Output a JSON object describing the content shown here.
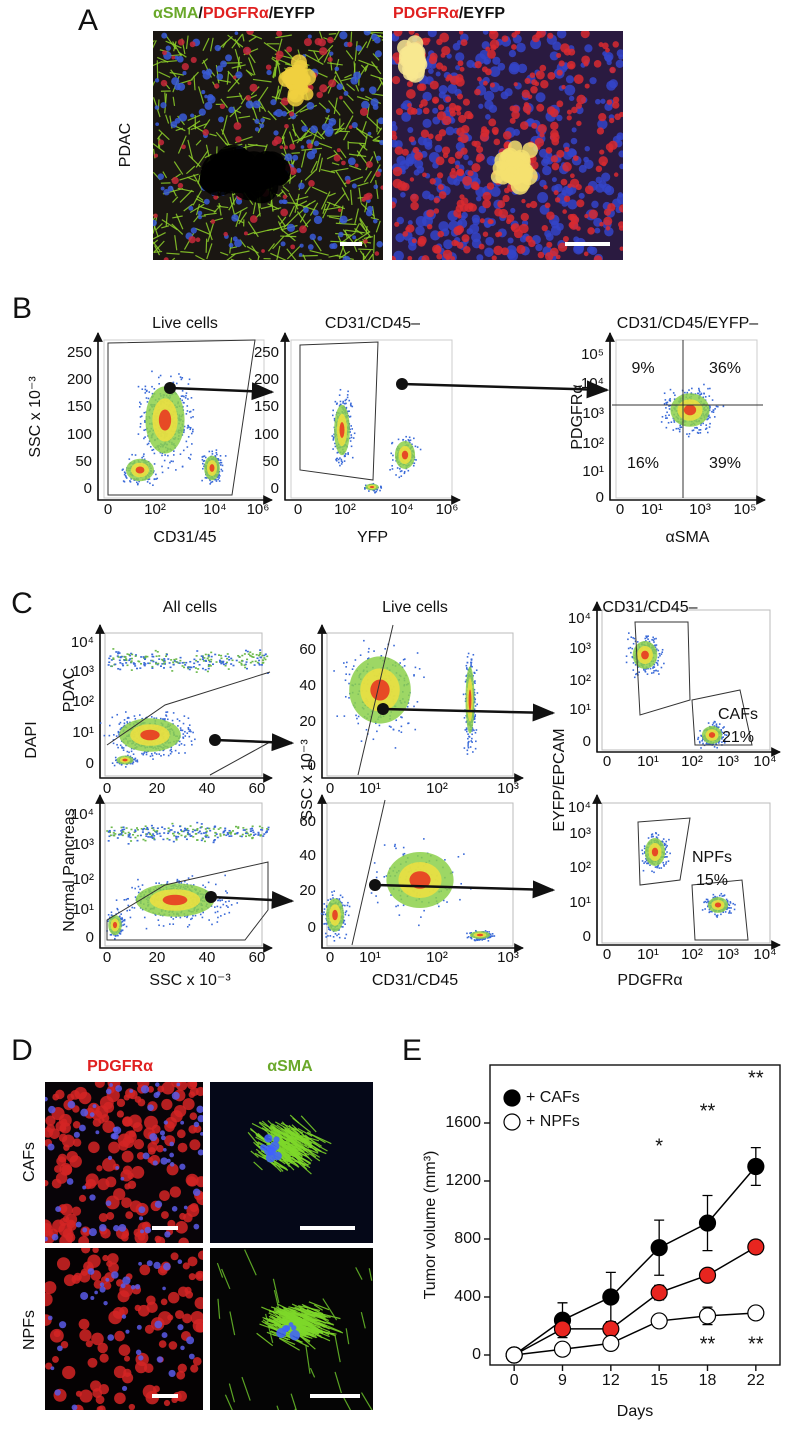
{
  "panel_labels": [
    "A",
    "B",
    "C",
    "D",
    "E"
  ],
  "panel_a": {
    "title_left": [
      "αSMA",
      "/",
      "PDGFRα",
      "/EYFP"
    ],
    "title_right": [
      "PDGFRα",
      "/EYFP"
    ],
    "row_label": "PDAC"
  },
  "panel_b": {
    "plots": [
      {
        "title": "Live cells",
        "x_label": "CD31/45",
        "y_label": "SSC x 10⁻³",
        "xticks": [
          "0",
          "10²",
          "10⁴",
          "10⁶"
        ],
        "yticks": [
          "250",
          "200",
          "150",
          "100",
          "50",
          "0"
        ]
      },
      {
        "title": "CD31/CD45–",
        "x_label": "YFP",
        "xticks": [
          "0",
          "10²",
          "10⁴",
          "10⁶"
        ],
        "yticks": [
          "250",
          "200",
          "150",
          "100",
          "50",
          "0"
        ]
      },
      {
        "title": "CD31/CD45/EYFP–",
        "x_label": "αSMA",
        "y_label": "PDGFRα",
        "xticks": [
          "0",
          "10¹",
          "10³",
          "10⁵"
        ],
        "yticks": [
          "10⁵",
          "10⁴",
          "10³",
          "10²",
          "10¹",
          "0"
        ]
      }
    ],
    "quadrants": [
      "9%",
      "36%",
      "16%",
      "39%"
    ]
  },
  "panel_c": {
    "titles": [
      "All cells",
      "Live cells",
      "CD31/CD45–"
    ],
    "row_labels": [
      "PDAC",
      "Normal Pancreas"
    ],
    "y_labels": [
      "DAPI",
      "SSC x 10⁻³",
      "EYFP/EPCAM"
    ],
    "x_labels": [
      "SSC x 10⁻³",
      "CD31/CD45",
      "PDGFRα"
    ],
    "plots": [
      {
        "xticks": [
          "0",
          "20",
          "40",
          "60"
        ],
        "yticks": [
          "10⁴",
          "10³",
          "10²",
          "10¹",
          "0"
        ]
      },
      {
        "xticks": [
          "0",
          "10¹",
          "10²",
          "10³"
        ],
        "yticks": [
          "60",
          "40",
          "20",
          "0"
        ]
      },
      {
        "xticks": [
          "0",
          "10¹",
          "10²",
          "10³",
          "10⁴"
        ],
        "yticks": [
          "10⁴",
          "10³",
          "10²",
          "10¹",
          "0"
        ],
        "gate": "CAFs",
        "percent": "21%"
      },
      {
        "xticks": [
          "0",
          "20",
          "40",
          "60"
        ],
        "yticks": [
          "10⁴",
          "10³",
          "10²",
          "10¹",
          "0"
        ]
      },
      {
        "xticks": [
          "0",
          "10¹",
          "10²",
          "10³"
        ],
        "yticks": [
          "60",
          "40",
          "20",
          "0"
        ]
      },
      {
        "xticks": [
          "0",
          "10¹",
          "10²",
          "10³",
          "10⁴"
        ],
        "yticks": [
          "10⁴",
          "10³",
          "10²",
          "10¹",
          "0"
        ],
        "gate": "NPFs",
        "percent": "15%"
      }
    ]
  },
  "panel_d": {
    "titles": [
      "PDGFRα",
      "αSMA"
    ],
    "row_labels": [
      "CAFs",
      "NPFs"
    ]
  },
  "chart_data": {
    "type": "line",
    "y_label": "Tumor volume (mm³)",
    "x_label": "Days",
    "categories": [
      "0",
      "9",
      "12",
      "15",
      "18",
      "22"
    ],
    "series": [
      {
        "name": "+ CAFs",
        "color": "#000000",
        "marker_fill": "#000000",
        "values": [
          0,
          240,
          400,
          740,
          910,
          1300
        ],
        "errors": [
          null,
          120,
          170,
          190,
          190,
          130
        ]
      },
      {
        "color": "#000000",
        "marker_fill": "#e8251f",
        "values": [
          0,
          180,
          180,
          430,
          550,
          745
        ],
        "errors": [
          null,
          25,
          20,
          50,
          35,
          45
        ]
      },
      {
        "name": "+ NPFs",
        "color": "#000000",
        "marker_fill": "#ffffff",
        "values": [
          0,
          40,
          80,
          235,
          270,
          290
        ],
        "errors": [
          null,
          15,
          15,
          20,
          60,
          40
        ]
      }
    ],
    "ylim": [
      -69,
      2000
    ],
    "yticks": [
      0,
      400,
      800,
      1200,
      1600
    ],
    "annotations": [
      "*",
      "**",
      "**",
      "**",
      "**"
    ],
    "legend": "upper left"
  }
}
